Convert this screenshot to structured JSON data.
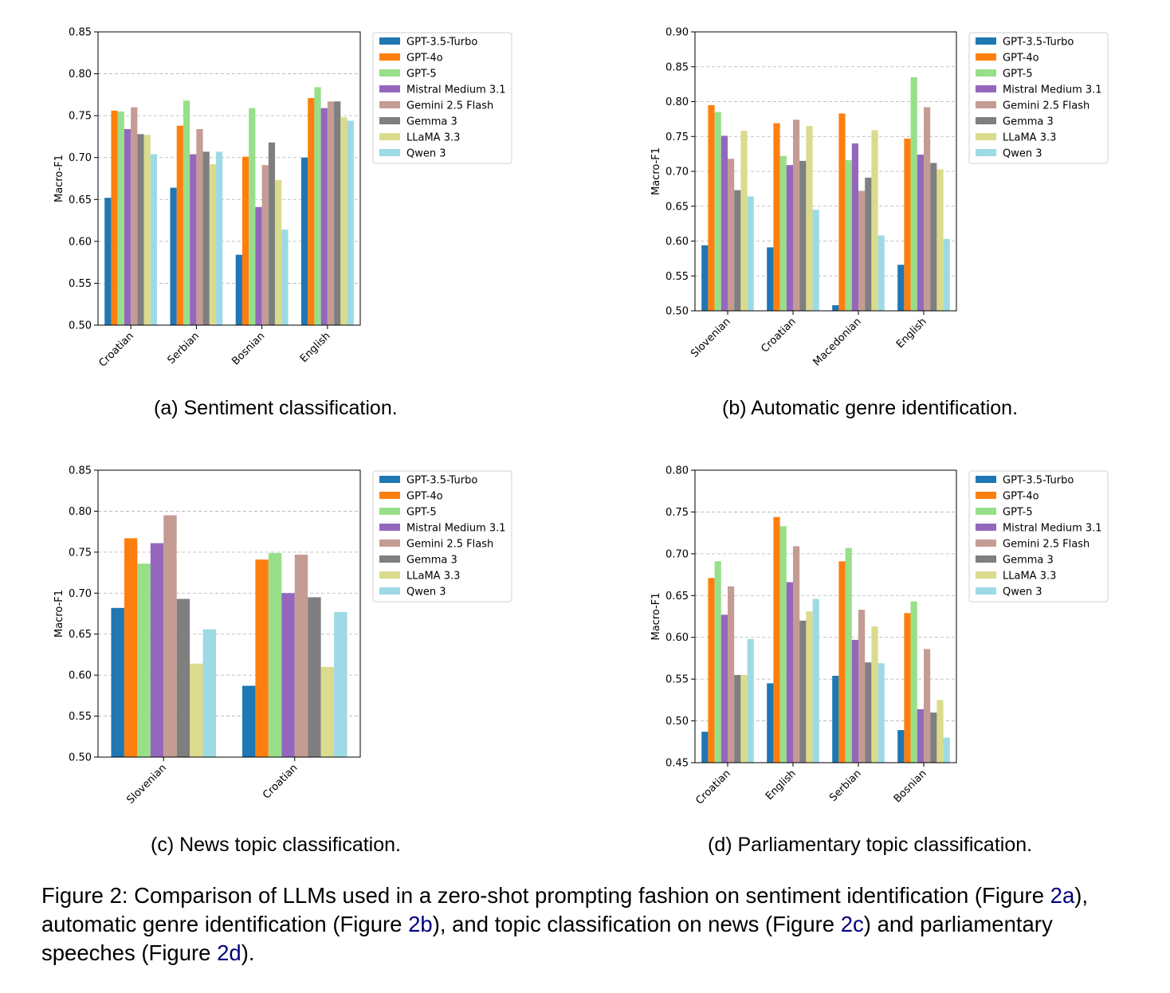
{
  "legend": [
    "GPT-3.5-Turbo",
    "GPT-4o",
    "GPT-5",
    "Mistral Medium 3.1",
    "Gemini 2.5 Flash",
    "Gemma 3",
    "LLaMA 3.3",
    "Qwen 3"
  ],
  "colors": [
    "#1f77b4",
    "#ff7f0e",
    "#98df8a",
    "#9467bd",
    "#c49c94",
    "#7f7f7f",
    "#dbdb8d",
    "#9edae5"
  ],
  "chart_data": [
    {
      "type": "bar",
      "title": "",
      "caption": "(a) Sentiment classification.",
      "xlabel": "",
      "ylabel": "Macro-F1",
      "ylim": [
        0.5,
        0.85
      ],
      "yticks": [
        "0.50",
        "0.55",
        "0.60",
        "0.65",
        "0.70",
        "0.75",
        "0.80",
        "0.85"
      ],
      "grid": true,
      "legend_position": "outside-right",
      "categories": [
        "Croatian",
        "Serbian",
        "Bosnian",
        "English"
      ],
      "series": [
        {
          "name": "GPT-3.5-Turbo",
          "values": [
            0.652,
            0.664,
            0.584,
            0.7
          ]
        },
        {
          "name": "GPT-4o",
          "values": [
            0.756,
            0.738,
            0.701,
            0.771
          ]
        },
        {
          "name": "GPT-5",
          "values": [
            0.755,
            0.768,
            0.759,
            0.784
          ]
        },
        {
          "name": "Mistral Medium 3.1",
          "values": [
            0.734,
            0.704,
            0.641,
            0.759
          ]
        },
        {
          "name": "Gemini 2.5 Flash",
          "values": [
            0.76,
            0.734,
            0.691,
            0.767
          ]
        },
        {
          "name": "Gemma 3",
          "values": [
            0.728,
            0.707,
            0.718,
            0.767
          ]
        },
        {
          "name": "LLaMA 3.3",
          "values": [
            0.727,
            0.692,
            0.673,
            0.748
          ]
        },
        {
          "name": "Qwen 3",
          "values": [
            0.704,
            0.707,
            0.614,
            0.744
          ]
        }
      ]
    },
    {
      "type": "bar",
      "title": "",
      "caption": "(b) Automatic genre identification.",
      "xlabel": "",
      "ylabel": "Macro-F1",
      "ylim": [
        0.5,
        0.9
      ],
      "yticks": [
        "0.50",
        "0.55",
        "0.60",
        "0.65",
        "0.70",
        "0.75",
        "0.80",
        "0.85",
        "0.90"
      ],
      "grid": true,
      "legend_position": "outside-right",
      "categories": [
        "Slovenian",
        "Croatian",
        "Macedonian",
        "English"
      ],
      "series": [
        {
          "name": "GPT-3.5-Turbo",
          "values": [
            0.594,
            0.591,
            0.508,
            0.566
          ]
        },
        {
          "name": "GPT-4o",
          "values": [
            0.795,
            0.769,
            0.783,
            0.747
          ]
        },
        {
          "name": "GPT-5",
          "values": [
            0.785,
            0.722,
            0.716,
            0.835
          ]
        },
        {
          "name": "Mistral Medium 3.1",
          "values": [
            0.751,
            0.709,
            0.74,
            0.724
          ]
        },
        {
          "name": "Gemini 2.5 Flash",
          "values": [
            0.718,
            0.774,
            0.672,
            0.792
          ]
        },
        {
          "name": "Gemma 3",
          "values": [
            0.673,
            0.715,
            0.691,
            0.712
          ]
        },
        {
          "name": "LLaMA 3.3",
          "values": [
            0.758,
            0.765,
            0.759,
            0.703
          ]
        },
        {
          "name": "Qwen 3",
          "values": [
            0.664,
            0.645,
            0.608,
            0.603
          ]
        }
      ]
    },
    {
      "type": "bar",
      "title": "",
      "caption": "(c) News topic classification.",
      "xlabel": "",
      "ylabel": "Macro-F1",
      "ylim": [
        0.5,
        0.85
      ],
      "yticks": [
        "0.50",
        "0.55",
        "0.60",
        "0.65",
        "0.70",
        "0.75",
        "0.80",
        "0.85"
      ],
      "grid": true,
      "legend_position": "outside-right",
      "categories": [
        "Slovenian",
        "Croatian"
      ],
      "series": [
        {
          "name": "GPT-3.5-Turbo",
          "values": [
            0.682,
            0.587
          ]
        },
        {
          "name": "GPT-4o",
          "values": [
            0.767,
            0.741
          ]
        },
        {
          "name": "GPT-5",
          "values": [
            0.736,
            0.749
          ]
        },
        {
          "name": "Mistral Medium 3.1",
          "values": [
            0.761,
            0.7
          ]
        },
        {
          "name": "Gemini 2.5 Flash",
          "values": [
            0.795,
            0.747
          ]
        },
        {
          "name": "Gemma 3",
          "values": [
            0.693,
            0.695
          ]
        },
        {
          "name": "LLaMA 3.3",
          "values": [
            0.614,
            0.61
          ]
        },
        {
          "name": "Qwen 3",
          "values": [
            0.656,
            0.677
          ]
        }
      ]
    },
    {
      "type": "bar",
      "title": "",
      "caption": "(d) Parliamentary topic classification.",
      "xlabel": "",
      "ylabel": "Macro-F1",
      "ylim": [
        0.45,
        0.8
      ],
      "yticks": [
        "0.45",
        "0.50",
        "0.55",
        "0.60",
        "0.65",
        "0.70",
        "0.75",
        "0.80"
      ],
      "grid": true,
      "legend_position": "outside-right",
      "categories": [
        "Croatian",
        "English",
        "Serbian",
        "Bosnian"
      ],
      "series": [
        {
          "name": "GPT-3.5-Turbo",
          "values": [
            0.487,
            0.545,
            0.554,
            0.489
          ]
        },
        {
          "name": "GPT-4o",
          "values": [
            0.671,
            0.744,
            0.691,
            0.629
          ]
        },
        {
          "name": "GPT-5",
          "values": [
            0.691,
            0.733,
            0.707,
            0.643
          ]
        },
        {
          "name": "Mistral Medium 3.1",
          "values": [
            0.627,
            0.666,
            0.597,
            0.514
          ]
        },
        {
          "name": "Gemini 2.5 Flash",
          "values": [
            0.661,
            0.709,
            0.633,
            0.586
          ]
        },
        {
          "name": "Gemma 3",
          "values": [
            0.555,
            0.62,
            0.57,
            0.51
          ]
        },
        {
          "name": "LLaMA 3.3",
          "values": [
            0.555,
            0.631,
            0.613,
            0.525
          ]
        },
        {
          "name": "Qwen 3",
          "values": [
            0.598,
            0.646,
            0.569,
            0.48
          ]
        }
      ]
    }
  ],
  "figure_caption": {
    "parts": [
      "Figure 2: Comparison of LLMs used in a zero-shot prompting fashion on sentiment identification (Figure ",
      "2a",
      "), automatic genre identification (Figure ",
      "2b",
      "), and topic classification on news (Figure ",
      "2c",
      ") and parliamentary speeches (Figure ",
      "2d",
      ")."
    ]
  }
}
